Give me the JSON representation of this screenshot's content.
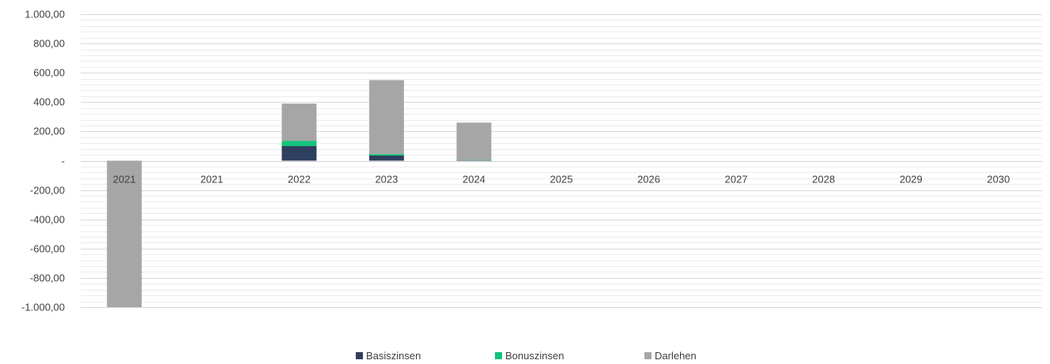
{
  "chart_data": {
    "type": "bar",
    "stacked": true,
    "categories": [
      "2021",
      "2021",
      "2022",
      "2023",
      "2024",
      "2025",
      "2026",
      "2027",
      "2028",
      "2029",
      "2030"
    ],
    "series": [
      {
        "name": "Basiszinsen",
        "color": "#2f3f5e",
        "values": [
          0,
          0,
          100,
          35,
          3,
          0,
          0,
          0,
          0,
          0,
          0
        ]
      },
      {
        "name": "Bonuszinsen",
        "color": "#12c47a",
        "values": [
          0,
          0,
          35,
          10,
          2,
          0,
          0,
          0,
          0,
          0,
          0
        ]
      },
      {
        "name": "Darlehen",
        "color": "#a6a6a6",
        "values": [
          -1000,
          0,
          255,
          505,
          255,
          0,
          0,
          0,
          0,
          0,
          0
        ]
      }
    ],
    "ylim": [
      -1000,
      1000
    ],
    "y_ticks": [
      1000,
      800,
      600,
      400,
      200,
      0,
      -200,
      -400,
      -600,
      -800,
      -1000
    ],
    "y_tick_labels": [
      "1.000,00",
      "800,00",
      "600,00",
      "400,00",
      "200,00",
      "-",
      "-200,00",
      "-400,00",
      "-600,00",
      "-800,00",
      "-1.000,00"
    ],
    "grid": true,
    "legend_position": "bottom-center",
    "title": "",
    "xlabel": "",
    "ylabel": ""
  }
}
